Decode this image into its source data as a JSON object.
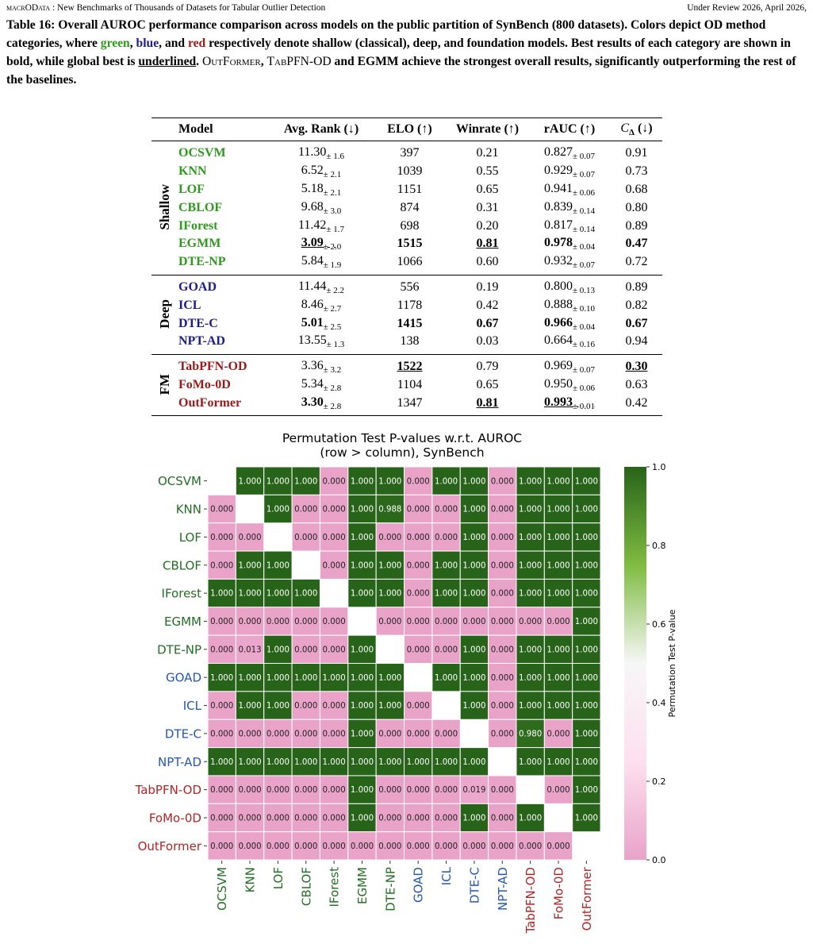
{
  "header": {
    "left": "macrOData",
    "left_rest": " : New Benchmarks of Thousands of Datasets for Tabular Outlier Detection",
    "right": "Under Review 2026, April 2026,"
  },
  "caption": [
    "Table 16: Overall AUROC performance comparison across models on the public partition of SynBench (800 datasets). Colors depict OD method categories, where ",
    "green",
    ", ",
    "blue",
    ", and ",
    "red",
    " respectively denote shallow (classical), deep, and foundation models. Best results of each category are shown in bold, while global best is ",
    "underlined",
    ". ",
    "OutFormer",
    ", ",
    "TabPFN-OD",
    " and EGMM achieve the strongest overall results, significantly outperforming the rest of the baselines."
  ],
  "table": {
    "columns": [
      "Model",
      "Avg. Rank (↓)",
      "ELO (↑)",
      "Winrate (↑)",
      "rAUC (↑)",
      {
        "main": "C",
        "sub": "Δ",
        "suffix": " (↓)"
      }
    ],
    "groups": [
      {
        "name": "Shallow",
        "color": "#2e9a1e",
        "rows": [
          {
            "model": "OCSVM",
            "cells": [
              {
                "text": "11.30",
                "std": "± 1.6"
              },
              {
                "text": "397"
              },
              {
                "text": "0.21"
              },
              {
                "text": "0.827",
                "std": "± 0.07"
              },
              {
                "text": "0.91"
              }
            ]
          },
          {
            "model": "KNN",
            "cells": [
              {
                "text": "6.52",
                "std": "± 2.1"
              },
              {
                "text": "1039"
              },
              {
                "text": "0.55"
              },
              {
                "text": "0.929",
                "std": "± 0.07"
              },
              {
                "text": "0.73"
              }
            ]
          },
          {
            "model": "LOF",
            "cells": [
              {
                "text": "5.18",
                "std": "± 2.1"
              },
              {
                "text": "1151"
              },
              {
                "text": "0.65"
              },
              {
                "text": "0.941",
                "std": "± 0.06"
              },
              {
                "text": "0.68"
              }
            ]
          },
          {
            "model": "CBLOF",
            "cells": [
              {
                "text": "9.68",
                "std": "± 3.0"
              },
              {
                "text": "874"
              },
              {
                "text": "0.31"
              },
              {
                "text": "0.839",
                "std": "± 0.14"
              },
              {
                "text": "0.80"
              }
            ]
          },
          {
            "model": "IForest",
            "cells": [
              {
                "text": "11.42",
                "std": "± 1.7"
              },
              {
                "text": "698"
              },
              {
                "text": "0.20"
              },
              {
                "text": "0.817",
                "std": "± 0.14"
              },
              {
                "text": "0.89"
              }
            ]
          },
          {
            "model": "EGMM",
            "cells": [
              {
                "text": "3.09",
                "std": "± 2.0",
                "bold": true,
                "underline": true
              },
              {
                "text": "1515",
                "bold": true
              },
              {
                "text": "0.81",
                "bold": true,
                "underline": true
              },
              {
                "text": "0.978",
                "std": "± 0.04",
                "bold": true
              },
              {
                "text": "0.47",
                "bold": true
              }
            ]
          },
          {
            "model": "DTE-NP",
            "cells": [
              {
                "text": "5.84",
                "std": "± 1.9"
              },
              {
                "text": "1066"
              },
              {
                "text": "0.60"
              },
              {
                "text": "0.932",
                "std": "± 0.07"
              },
              {
                "text": "0.72"
              }
            ]
          }
        ]
      },
      {
        "name": "Deep",
        "color": "#1c1c8c",
        "rows": [
          {
            "model": "GOAD",
            "cells": [
              {
                "text": "11.44",
                "std": "± 2.2"
              },
              {
                "text": "556"
              },
              {
                "text": "0.19"
              },
              {
                "text": "0.800",
                "std": "± 0.13"
              },
              {
                "text": "0.89"
              }
            ]
          },
          {
            "model": "ICL",
            "cells": [
              {
                "text": "8.46",
                "std": "± 2.7"
              },
              {
                "text": "1178"
              },
              {
                "text": "0.42"
              },
              {
                "text": "0.888",
                "std": "± 0.10"
              },
              {
                "text": "0.82"
              }
            ]
          },
          {
            "model": "DTE-C",
            "cells": [
              {
                "text": "5.01",
                "std": "± 2.5",
                "bold": true
              },
              {
                "text": "1415",
                "bold": true
              },
              {
                "text": "0.67",
                "bold": true
              },
              {
                "text": "0.966",
                "std": "± 0.04",
                "bold": true
              },
              {
                "text": "0.67",
                "bold": true
              }
            ]
          },
          {
            "model": "NPT-AD",
            "cells": [
              {
                "text": "13.55",
                "std": "± 1.3"
              },
              {
                "text": "138"
              },
              {
                "text": "0.03"
              },
              {
                "text": "0.664",
                "std": "± 0.16"
              },
              {
                "text": "0.94"
              }
            ]
          }
        ]
      },
      {
        "name": "FM",
        "color": "#9a1a1a",
        "rows": [
          {
            "model": "TabPFN-OD",
            "cells": [
              {
                "text": "3.36",
                "std": "± 3.2"
              },
              {
                "text": "1522",
                "bold": true,
                "underline": true
              },
              {
                "text": "0.79"
              },
              {
                "text": "0.969",
                "std": "± 0.07"
              },
              {
                "text": "0.30",
                "bold": true,
                "underline": true
              }
            ]
          },
          {
            "model": "FoMo-0D",
            "cells": [
              {
                "text": "5.34",
                "std": "± 2.8"
              },
              {
                "text": "1104"
              },
              {
                "text": "0.65"
              },
              {
                "text": "0.950",
                "std": "± 0.06"
              },
              {
                "text": "0.63"
              }
            ]
          },
          {
            "model": "OutFormer",
            "cells": [
              {
                "text": "3.30",
                "std": "± 2.8",
                "bold": true
              },
              {
                "text": "1347"
              },
              {
                "text": "0.81",
                "bold": true,
                "underline": true
              },
              {
                "text": "0.993",
                "std": "± 0.01",
                "bold": true,
                "underline": true
              },
              {
                "text": "0.42"
              }
            ]
          }
        ]
      }
    ]
  },
  "chart_data": {
    "type": "heatmap",
    "title": [
      "Permutation Test P-values w.r.t. AUROC",
      "(row > column), SynBench"
    ],
    "labels": [
      "OCSVM",
      "KNN",
      "LOF",
      "CBLOF",
      "IForest",
      "EGMM",
      "DTE-NP",
      "GOAD",
      "ICL",
      "DTE-C",
      "NPT-AD",
      "TabPFN-OD",
      "FoMo-0D",
      "OutFormer"
    ],
    "label_colors": [
      "#236e23",
      "#236e23",
      "#236e23",
      "#236e23",
      "#236e23",
      "#236e23",
      "#236e23",
      "#2457b0",
      "#2457b0",
      "#2457b0",
      "#2457b0",
      "#b02525",
      "#b02525",
      "#b02525"
    ],
    "values": [
      [
        null,
        1,
        1,
        1,
        0,
        1,
        1,
        0,
        1,
        1,
        0,
        1,
        1,
        1
      ],
      [
        0,
        null,
        1,
        0,
        0,
        1,
        0.988,
        0,
        0,
        1,
        0,
        1,
        1,
        1
      ],
      [
        0,
        0,
        null,
        0,
        0,
        1,
        0,
        0,
        0,
        1,
        0,
        1,
        1,
        1
      ],
      [
        0,
        1,
        1,
        null,
        0,
        1,
        1,
        0,
        1,
        1,
        0,
        1,
        1,
        1
      ],
      [
        1,
        1,
        1,
        1,
        null,
        1,
        1,
        0,
        1,
        1,
        0,
        1,
        1,
        1
      ],
      [
        0,
        0,
        0,
        0,
        0,
        null,
        0,
        0,
        0,
        0,
        0,
        0,
        0,
        1
      ],
      [
        0,
        0.013,
        1,
        0,
        0,
        1,
        null,
        0,
        0,
        1,
        0,
        1,
        1,
        1
      ],
      [
        1,
        1,
        1,
        1,
        1,
        1,
        1,
        null,
        1,
        1,
        0,
        1,
        1,
        1
      ],
      [
        0,
        1,
        1,
        0,
        0,
        1,
        1,
        0,
        null,
        1,
        0,
        1,
        1,
        1
      ],
      [
        0,
        0,
        0,
        0,
        0,
        1,
        0,
        0,
        0,
        null,
        0,
        0.98,
        0,
        1
      ],
      [
        1,
        1,
        1,
        1,
        1,
        1,
        1,
        1,
        1,
        1,
        null,
        1,
        1,
        1
      ],
      [
        0,
        0,
        0,
        0,
        0,
        1,
        0,
        0,
        0,
        0.019,
        0,
        null,
        0,
        1
      ],
      [
        0,
        0,
        0,
        0,
        0,
        1,
        0,
        0,
        0,
        1,
        0,
        1,
        null,
        1
      ],
      [
        0,
        0,
        0,
        0,
        0,
        0,
        0,
        0,
        0,
        0,
        0,
        0,
        0,
        null
      ]
    ],
    "value_labels": [
      [
        null,
        "1.000",
        "1.000",
        "1.000",
        "0.000",
        "1.000",
        "1.000",
        "0.000",
        "1.000",
        "1.000",
        "0.000",
        "1.000",
        "1.000",
        "1.000"
      ],
      [
        "0.000",
        null,
        "1.000",
        "0.000",
        "0.000",
        "1.000",
        "0.988",
        "0.000",
        "0.000",
        "1.000",
        "0.000",
        "1.000",
        "1.000",
        "1.000"
      ],
      [
        "0.000",
        "0.000",
        null,
        "0.000",
        "0.000",
        "1.000",
        "0.000",
        "0.000",
        "0.000",
        "1.000",
        "0.000",
        "1.000",
        "1.000",
        "1.000"
      ],
      [
        "0.000",
        "1.000",
        "1.000",
        null,
        "0.000",
        "1.000",
        "1.000",
        "0.000",
        "1.000",
        "1.000",
        "0.000",
        "1.000",
        "1.000",
        "1.000"
      ],
      [
        "1.000",
        "1.000",
        "1.000",
        "1.000",
        null,
        "1.000",
        "1.000",
        "0.000",
        "1.000",
        "1.000",
        "0.000",
        "1.000",
        "1.000",
        "1.000"
      ],
      [
        "0.000",
        "0.000",
        "0.000",
        "0.000",
        "0.000",
        null,
        "0.000",
        "0.000",
        "0.000",
        "0.000",
        "0.000",
        "0.000",
        "0.000",
        "1.000"
      ],
      [
        "0.000",
        "0.013",
        "1.000",
        "0.000",
        "0.000",
        "1.000",
        null,
        "0.000",
        "0.000",
        "1.000",
        "0.000",
        "1.000",
        "1.000",
        "1.000"
      ],
      [
        "1.000",
        "1.000",
        "1.000",
        "1.000",
        "1.000",
        "1.000",
        "1.000",
        null,
        "1.000",
        "1.000",
        "0.000",
        "1.000",
        "1.000",
        "1.000"
      ],
      [
        "0.000",
        "1.000",
        "1.000",
        "0.000",
        "0.000",
        "1.000",
        "1.000",
        "0.000",
        null,
        "1.000",
        "0.000",
        "1.000",
        "1.000",
        "1.000"
      ],
      [
        "0.000",
        "0.000",
        "0.000",
        "0.000",
        "0.000",
        "1.000",
        "0.000",
        "0.000",
        "0.000",
        null,
        "0.000",
        "0.980",
        "0.000",
        "1.000"
      ],
      [
        "1.000",
        "1.000",
        "1.000",
        "1.000",
        "1.000",
        "1.000",
        "1.000",
        "1.000",
        "1.000",
        "1.000",
        null,
        "1.000",
        "1.000",
        "1.000"
      ],
      [
        "0.000",
        "0.000",
        "0.000",
        "0.000",
        "0.000",
        "1.000",
        "0.000",
        "0.000",
        "0.000",
        "0.019",
        "0.000",
        null,
        "0.000",
        "1.000"
      ],
      [
        "0.000",
        "0.000",
        "0.000",
        "0.000",
        "0.000",
        "1.000",
        "0.000",
        "0.000",
        "0.000",
        "1.000",
        "0.000",
        "1.000",
        null,
        "1.000"
      ],
      [
        "0.000",
        "0.000",
        "0.000",
        "0.000",
        "0.000",
        "0.000",
        "0.000",
        "0.000",
        "0.000",
        "0.000",
        "0.000",
        "0.000",
        "0.000",
        null
      ]
    ],
    "colors": [
      "#e9a3c9",
      "#fde0ef",
      "#f7f7f7",
      "#7fbc41",
      "#276419"
    ],
    "zlim": [
      0,
      1
    ],
    "colorbar_label": "Permutation Test P-value",
    "colorbar_ticks": [
      {
        "value": 0,
        "label": "0.0"
      },
      0.2,
      0.4,
      0.6,
      0.8,
      {
        "value": 1,
        "label": "1.0"
      }
    ]
  }
}
